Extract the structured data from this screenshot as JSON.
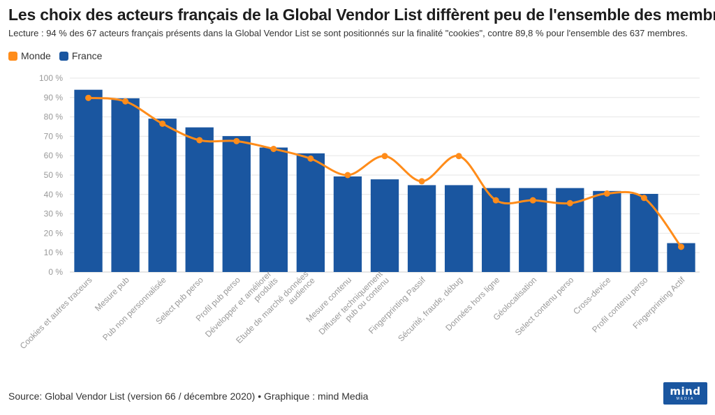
{
  "header": {
    "title": "Les choix des acteurs français de la Global Vendor List diffèrent peu de l'ensemble des membres",
    "subtitle": "Lecture : 94 % des 67 acteurs français présents dans la Global Vendor List se sont positionnés sur la finalité \"cookies\", contre 89,8 % pour l'ensemble des 637 membres."
  },
  "footer": {
    "source": "Source: Global Vendor List (version 66 / décembre 2020) • Graphique : mind Media",
    "logo_word": "mind",
    "logo_sub": "MEDIA"
  },
  "colors": {
    "france": "#1a56a0",
    "monde": "#ff8c1a",
    "grid": "#e6e6e6",
    "tick": "#999999",
    "logo_bg": "#1a56a0"
  },
  "chart_data": {
    "type": "bar",
    "categories": [
      "Cookies et autres traceurs",
      "Mesure pub",
      "Pub non personnalisée",
      "Select pub perso",
      "Profil pub perso",
      "Développer et améliorer produits",
      "Etude de marché données audience",
      "Mesure contenu",
      "Diffuser techniquement pub ou contenu",
      "Fingerprinting Passif",
      "Sécurité, fraude, débug",
      "Données hors ligne",
      "Géolocalisation",
      "Select contenu perso",
      "Cross-device",
      "Profil contenu perso",
      "Fingerprinting Actif"
    ],
    "series": [
      {
        "name": "France",
        "type": "bar",
        "values": [
          94,
          89.6,
          79.1,
          74.6,
          70.1,
          64.2,
          61.2,
          49.3,
          47.8,
          44.8,
          44.8,
          43.3,
          43.3,
          43.3,
          41.8,
          40.3,
          14.9
        ]
      },
      {
        "name": "Monde",
        "type": "line",
        "values": [
          89.8,
          88,
          76.5,
          68,
          67.5,
          63.5,
          58.5,
          50,
          59.8,
          46.8,
          59.8,
          37,
          37,
          35.5,
          40.5,
          38.2,
          13
        ]
      }
    ],
    "legend": [
      "Monde",
      "France"
    ],
    "legend_position": "top-left",
    "ylim": [
      0,
      100
    ],
    "yticks": [
      "0 %",
      "10 %",
      "20 %",
      "30 %",
      "40 %",
      "50 %",
      "60 %",
      "70 %",
      "80 %",
      "90 %",
      "100 %"
    ],
    "grid": true
  }
}
